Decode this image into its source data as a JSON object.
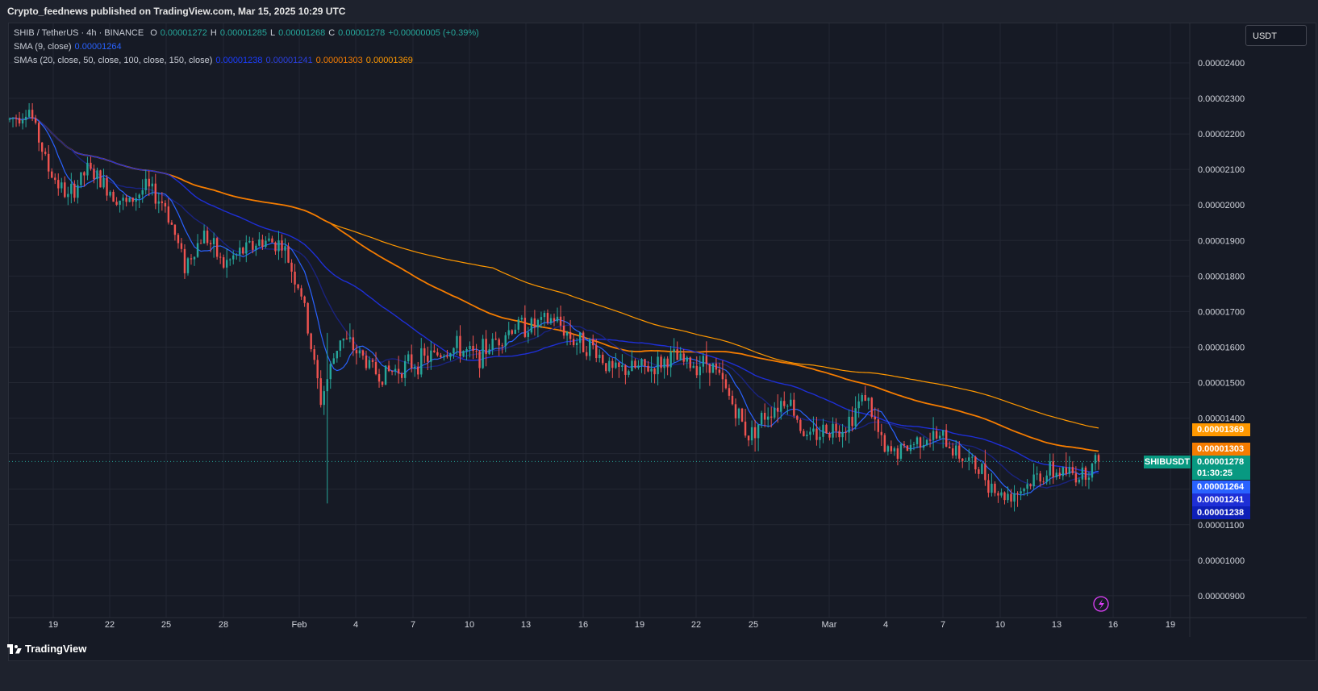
{
  "header": {
    "published": "Crypto_feednews published on TradingView.com, Mar 15, 2025 10:29 UTC"
  },
  "legend": {
    "symbol_line": "SHIB / TetherUS · 4h · BINANCE",
    "o_label": "O",
    "o_value": "0.00001272",
    "h_label": "H",
    "h_value": "0.00001285",
    "l_label": "L",
    "l_value": "0.00001268",
    "c_label": "C",
    "c_value": "0.00001278",
    "change": "+0.00000005 (+0.39%)",
    "sma_label": "SMA (9, close)",
    "sma_value": "0.00001264",
    "smas_label": "SMAs (20, close, 50, close, 100, close, 150, close)",
    "smas_values": [
      "0.00001238",
      "0.00001241",
      "0.00001303",
      "0.00001369"
    ]
  },
  "currency": "USDT",
  "symbol_tag": "SHIBUSDT",
  "price_tags": {
    "sma150": "0.00001369",
    "sma100": "0.00001303",
    "last": "0.00001278",
    "countdown": "01:30:25",
    "sma9": "0.00001264",
    "sma50": "0.00001241",
    "sma20": "0.00001238"
  },
  "colors": {
    "up": "#26a69a",
    "down": "#ef5350",
    "sma9": "#2962ff",
    "sma20": "#1a237e",
    "sma50": "#1e2fd6",
    "sma100": "#f57c00",
    "sma150": "#ff9800",
    "grid": "#232733"
  },
  "footer": {
    "brand": "TradingView"
  },
  "chart_data": {
    "type": "candlestick",
    "title": "SHIB / TetherUS · 4h · BINANCE",
    "y_ticks": [
      "0.00002400",
      "0.00002300",
      "0.00002200",
      "0.00002100",
      "0.00002000",
      "0.00001900",
      "0.00001800",
      "0.00001700",
      "0.00001600",
      "0.00001500",
      "0.00001400",
      "0.00001300",
      "0.00001200",
      "0.00001100",
      "0.00001000",
      "0.00000900"
    ],
    "x_ticks": [
      "19",
      "22",
      "25",
      "28",
      "Feb",
      "4",
      "7",
      "10",
      "13",
      "16",
      "19",
      "22",
      "25",
      "Mar",
      "4",
      "7",
      "10",
      "13",
      "16",
      "19"
    ],
    "ylim": [
      8.5e-06,
      2.5e-05
    ],
    "close_series": [
      [
        "Jan 18",
        2.24e-05
      ],
      [
        "Jan 19",
        2.27e-05
      ],
      [
        "Jan 20",
        2.1e-05
      ],
      [
        "Jan 21",
        2.02e-05
      ],
      [
        "Jan 22",
        2.1e-05
      ],
      [
        "Jan 23",
        2.05e-05
      ],
      [
        "Jan 24",
        2e-05
      ],
      [
        "Jan 25",
        2.05e-05
      ],
      [
        "Jan 26",
        2e-05
      ],
      [
        "Jan 27",
        1.83e-05
      ],
      [
        "Jan 28",
        1.92e-05
      ],
      [
        "Jan 29",
        1.83e-05
      ],
      [
        "Jan 30",
        1.87e-05
      ],
      [
        "Jan 31",
        1.9e-05
      ],
      [
        "Feb 1",
        1.89e-05
      ],
      [
        "Feb 2",
        1.75e-05
      ],
      [
        "Feb 3",
        1.45e-05
      ],
      [
        "Feb 4",
        1.63e-05
      ],
      [
        "Feb 5",
        1.58e-05
      ],
      [
        "Feb 6",
        1.52e-05
      ],
      [
        "Feb 7",
        1.54e-05
      ],
      [
        "Feb 8",
        1.56e-05
      ],
      [
        "Feb 9",
        1.58e-05
      ],
      [
        "Feb 10",
        1.6e-05
      ],
      [
        "Feb 11",
        1.57e-05
      ],
      [
        "Feb 12",
        1.62e-05
      ],
      [
        "Feb 13",
        1.66e-05
      ],
      [
        "Feb 14",
        1.66e-05
      ],
      [
        "Feb 15",
        1.68e-05
      ],
      [
        "Feb 16",
        1.62e-05
      ],
      [
        "Feb 17",
        1.6e-05
      ],
      [
        "Feb 18",
        1.53e-05
      ],
      [
        "Feb 19",
        1.54e-05
      ],
      [
        "Feb 20",
        1.54e-05
      ],
      [
        "Feb 21",
        1.57e-05
      ],
      [
        "Feb 22",
        1.55e-05
      ],
      [
        "Feb 23",
        1.56e-05
      ],
      [
        "Feb 24",
        1.46e-05
      ],
      [
        "Feb 25",
        1.35e-05
      ],
      [
        "Feb 26",
        1.42e-05
      ],
      [
        "Feb 27",
        1.46e-05
      ],
      [
        "Feb 28",
        1.34e-05
      ],
      [
        "Mar 1",
        1.37e-05
      ],
      [
        "Mar 2",
        1.38e-05
      ],
      [
        "Mar 3",
        1.47e-05
      ],
      [
        "Mar 4",
        1.3e-05
      ],
      [
        "Mar 5",
        1.31e-05
      ],
      [
        "Mar 6",
        1.35e-05
      ],
      [
        "Mar 7",
        1.34e-05
      ],
      [
        "Mar 8",
        1.29e-05
      ],
      [
        "Mar 9",
        1.25e-05
      ],
      [
        "Mar 10",
        1.18e-05
      ],
      [
        "Mar 11",
        1.2e-05
      ],
      [
        "Mar 12",
        1.24e-05
      ],
      [
        "Mar 13",
        1.25e-05
      ],
      [
        "Mar 14",
        1.24e-05
      ],
      [
        "Mar 15",
        1.278e-05
      ]
    ]
  }
}
